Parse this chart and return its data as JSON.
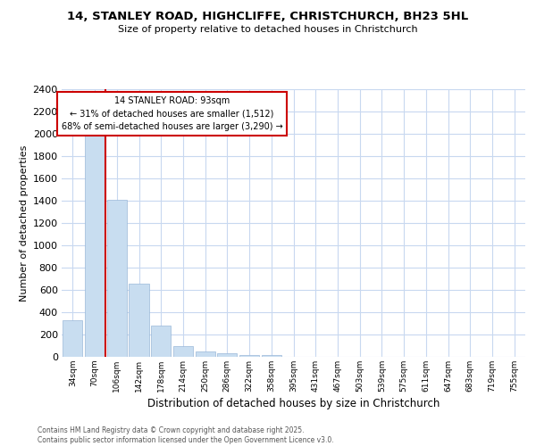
{
  "title_line1": "14, STANLEY ROAD, HIGHCLIFFE, CHRISTCHURCH, BH23 5HL",
  "title_line2": "Size of property relative to detached houses in Christchurch",
  "xlabel": "Distribution of detached houses by size in Christchurch",
  "ylabel": "Number of detached properties",
  "categories": [
    "34sqm",
    "70sqm",
    "106sqm",
    "142sqm",
    "178sqm",
    "214sqm",
    "250sqm",
    "286sqm",
    "322sqm",
    "358sqm",
    "395sqm",
    "431sqm",
    "467sqm",
    "503sqm",
    "539sqm",
    "575sqm",
    "611sqm",
    "647sqm",
    "683sqm",
    "719sqm",
    "755sqm"
  ],
  "values": [
    330,
    2000,
    1410,
    660,
    280,
    100,
    50,
    30,
    20,
    15,
    0,
    0,
    0,
    0,
    0,
    0,
    0,
    0,
    0,
    0,
    0
  ],
  "bar_color": "#c8ddf0",
  "bar_edge_color": "#9ab8d8",
  "annotation_title": "14 STANLEY ROAD: 93sqm",
  "annotation_line1": "← 31% of detached houses are smaller (1,512)",
  "annotation_line2": "68% of semi-detached houses are larger (3,290) →",
  "red_line_color": "#cc0000",
  "ylim": [
    0,
    2400
  ],
  "yticks": [
    0,
    200,
    400,
    600,
    800,
    1000,
    1200,
    1400,
    1600,
    1800,
    2000,
    2200,
    2400
  ],
  "footer_line1": "Contains HM Land Registry data © Crown copyright and database right 2025.",
  "footer_line2": "Contains public sector information licensed under the Open Government Licence v3.0.",
  "background_color": "#ffffff",
  "grid_color": "#c8d8f0"
}
